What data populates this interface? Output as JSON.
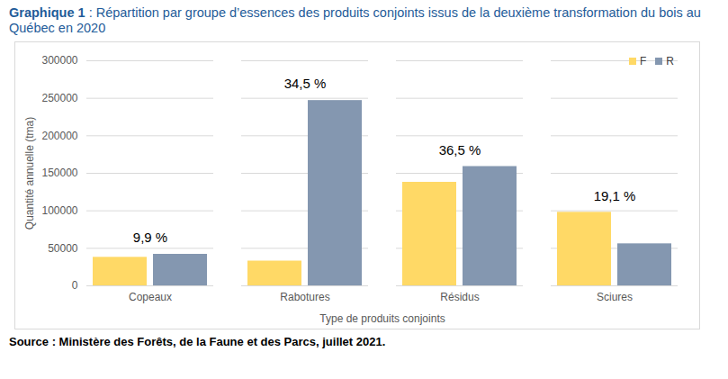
{
  "chart_data": {
    "type": "bar",
    "title": "Graphique 1 : Répartition par groupe d’essences des produits conjoints issus de la deuxième transformation du bois au Québec en 2020",
    "categories": [
      "Copeaux",
      "Rabotures",
      "Résidus",
      "Sciures"
    ],
    "series": [
      {
        "name": "F",
        "color": "#ffd966",
        "values": [
          38000,
          33000,
          138000,
          98000
        ]
      },
      {
        "name": "R",
        "color": "#8497b0",
        "values": [
          42000,
          247000,
          159000,
          56000
        ]
      }
    ],
    "annotations": [
      "9,9 %",
      "34,5 %",
      "36,5 %",
      "19,1 %"
    ],
    "x_label": "Type de produits conjoints",
    "y_label": "Quantité annuelle (tma)",
    "ylim": [
      0,
      300000
    ],
    "yticks": [
      0,
      50000,
      100000,
      150000,
      200000,
      250000,
      300000
    ],
    "grid": true,
    "legend": "top-right",
    "source": "Source : Ministère des Forêts, de la Faune et des Parcs, juillet 2021."
  }
}
